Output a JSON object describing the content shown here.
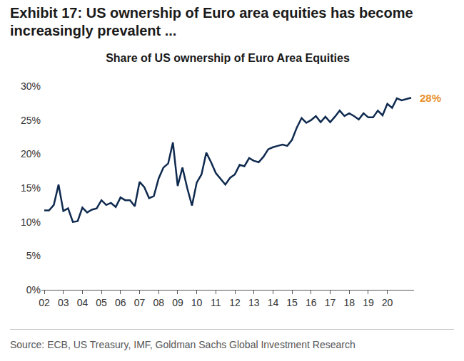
{
  "title": "Exhibit 17: US ownership of Euro area equities has become increasingly prevalent ...",
  "source": "Source: ECB, US Treasury, IMF, Goldman Sachs Global Investment Research",
  "chart_data": {
    "type": "line",
    "title": "Share of US ownership of Euro Area Equities",
    "categories": [
      "02",
      null,
      null,
      null,
      "03",
      null,
      null,
      null,
      "04",
      null,
      null,
      null,
      "05",
      null,
      null,
      null,
      "06",
      null,
      null,
      null,
      "07",
      null,
      null,
      null,
      "08",
      null,
      null,
      null,
      "09",
      null,
      null,
      null,
      "10",
      null,
      null,
      null,
      "11",
      null,
      null,
      null,
      "12",
      null,
      null,
      null,
      "13",
      null,
      null,
      null,
      "14",
      null,
      null,
      null,
      "15",
      null,
      null,
      null,
      "16",
      null,
      null,
      null,
      "17",
      null,
      null,
      null,
      "18",
      null,
      null,
      null,
      "19",
      null,
      null,
      null,
      "20",
      null,
      null,
      null,
      null,
      null
    ],
    "values": [
      11.7,
      11.7,
      12.5,
      15.5,
      11.6,
      12.0,
      10.0,
      10.1,
      12.1,
      11.4,
      11.8,
      12.0,
      13.2,
      12.5,
      12.8,
      12.2,
      13.6,
      13.2,
      13.2,
      12.3,
      15.9,
      15.1,
      13.5,
      13.8,
      16.4,
      18.0,
      18.6,
      21.7,
      15.3,
      18.0,
      15.0,
      12.4,
      15.8,
      17.0,
      20.2,
      18.8,
      17.2,
      16.3,
      15.5,
      16.5,
      17.0,
      18.4,
      18.2,
      19.4,
      19.0,
      18.8,
      19.6,
      20.7,
      21.0,
      21.2,
      21.4,
      21.2,
      22.1,
      23.9,
      25.3,
      24.6,
      25.0,
      25.6,
      24.7,
      25.5,
      24.7,
      25.5,
      26.4,
      25.6,
      26.0,
      25.6,
      25.1,
      26.0,
      25.4,
      25.4,
      26.4,
      25.7,
      27.4,
      26.8,
      28.2,
      27.9,
      28.1,
      28.3
    ],
    "color": "#0f2a4f",
    "ylim": [
      0,
      30
    ],
    "yticks": [
      {
        "value": 0,
        "label": "0%"
      },
      {
        "value": 5,
        "label": "5%"
      },
      {
        "value": 10,
        "label": "10%"
      },
      {
        "value": 15,
        "label": "15%"
      },
      {
        "value": 20,
        "label": "20%"
      },
      {
        "value": 25,
        "label": "25%"
      },
      {
        "value": 30,
        "label": "30%"
      }
    ],
    "grid": false,
    "annotation": "28%"
  }
}
